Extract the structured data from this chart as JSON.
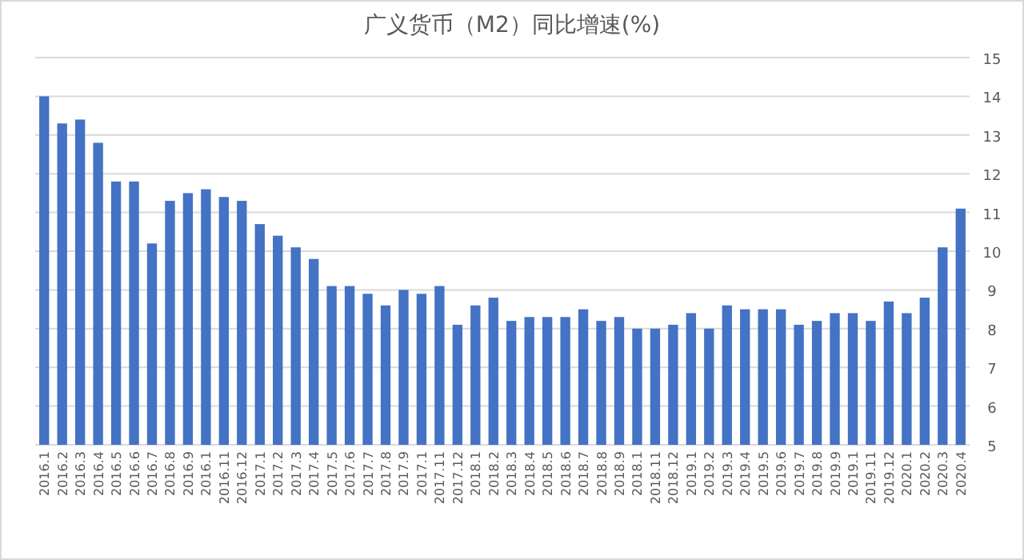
{
  "chart_data": {
    "type": "bar",
    "title": "广义货币（M2）同比增速(%)",
    "categories": [
      "2016.1",
      "2016.2",
      "2016.3",
      "2016.4",
      "2016.5",
      "2016.6",
      "2016.7",
      "2016.8",
      "2016.9",
      "2016.1",
      "2016.11",
      "2016.12",
      "2017.1",
      "2017.2",
      "2017.3",
      "2017.4",
      "2017.5",
      "2017.6",
      "2017.7",
      "2017.8",
      "2017.9",
      "2017.1",
      "2017.11",
      "2017.12",
      "2018.1",
      "2018.2",
      "2018.3",
      "2018.4",
      "2018.5",
      "2018.6",
      "2018.7",
      "2018.8",
      "2018.9",
      "2018.1",
      "2018.11",
      "2018.12",
      "2019.1",
      "2019.2",
      "2019.3",
      "2019.4",
      "2019.5",
      "2019.6",
      "2019.7",
      "2019.8",
      "2019.9",
      "2019.1",
      "2019.11",
      "2019.12",
      "2020.1",
      "2020.2",
      "2020.3",
      "2020.4"
    ],
    "values": [
      14.0,
      13.3,
      13.4,
      12.8,
      11.8,
      11.8,
      10.2,
      11.3,
      11.5,
      11.6,
      11.4,
      11.3,
      10.7,
      10.4,
      10.1,
      9.8,
      9.1,
      9.1,
      8.9,
      8.6,
      9.0,
      8.9,
      9.1,
      8.1,
      8.6,
      8.8,
      8.2,
      8.3,
      8.3,
      8.3,
      8.5,
      8.2,
      8.3,
      8.0,
      8.0,
      8.1,
      8.4,
      8.0,
      8.6,
      8.5,
      8.5,
      8.5,
      8.1,
      8.2,
      8.4,
      8.4,
      8.2,
      8.7,
      8.4,
      8.8,
      10.1,
      11.1
    ],
    "color": "#4472c4",
    "ylim": [
      5,
      15
    ],
    "yticks": [
      5,
      6,
      7,
      8,
      9,
      10,
      11,
      12,
      13,
      14,
      15
    ],
    "grid": "y"
  }
}
